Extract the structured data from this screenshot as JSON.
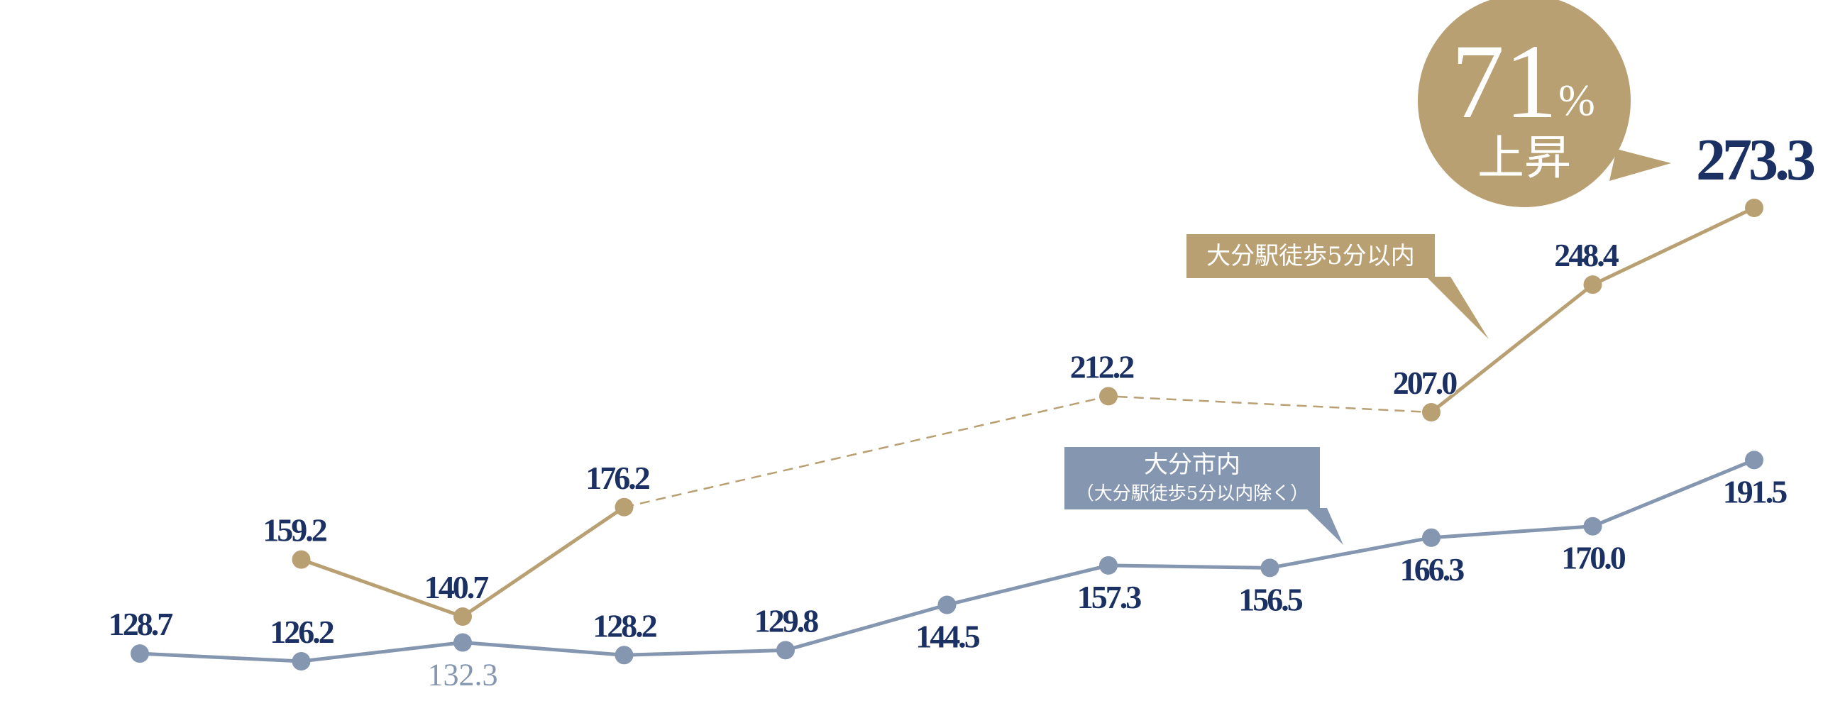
{
  "chart_data": {
    "type": "line",
    "title": "",
    "xlabel": "",
    "ylabel": "",
    "ylim": [
      110,
      290
    ],
    "grid": false,
    "x": [
      1,
      2,
      3,
      4,
      5,
      6,
      7,
      8,
      9,
      10,
      11
    ],
    "series": [
      {
        "name": "大分市内",
        "name_sub": "（大分駅徒歩5分以内除く）",
        "color": "#8496b0",
        "values": [
          128.7,
          126.2,
          132.3,
          128.2,
          129.8,
          144.5,
          157.3,
          156.5,
          166.3,
          170.0,
          191.5
        ],
        "labels": [
          "128.7",
          "126.2",
          "132.3",
          "128.2",
          "129.8",
          "144.5",
          "157.3",
          "156.5",
          "166.3",
          "170.0",
          "191.5"
        ]
      },
      {
        "name": "大分駅徒歩5分以内",
        "color": "#b9a072",
        "values": [
          null,
          159.2,
          140.7,
          176.2,
          null,
          null,
          212.2,
          null,
          207.0,
          248.4,
          273.3
        ],
        "labels": [
          "",
          "159.2",
          "140.7",
          "176.2",
          "",
          "",
          "212.2",
          "",
          "207.0",
          "248.4",
          "273.3"
        ],
        "dashed_gap_after_index": 3
      }
    ],
    "annotation": {
      "value": "71",
      "unit": "%",
      "text": "上昇",
      "color": "#b9a072"
    }
  }
}
